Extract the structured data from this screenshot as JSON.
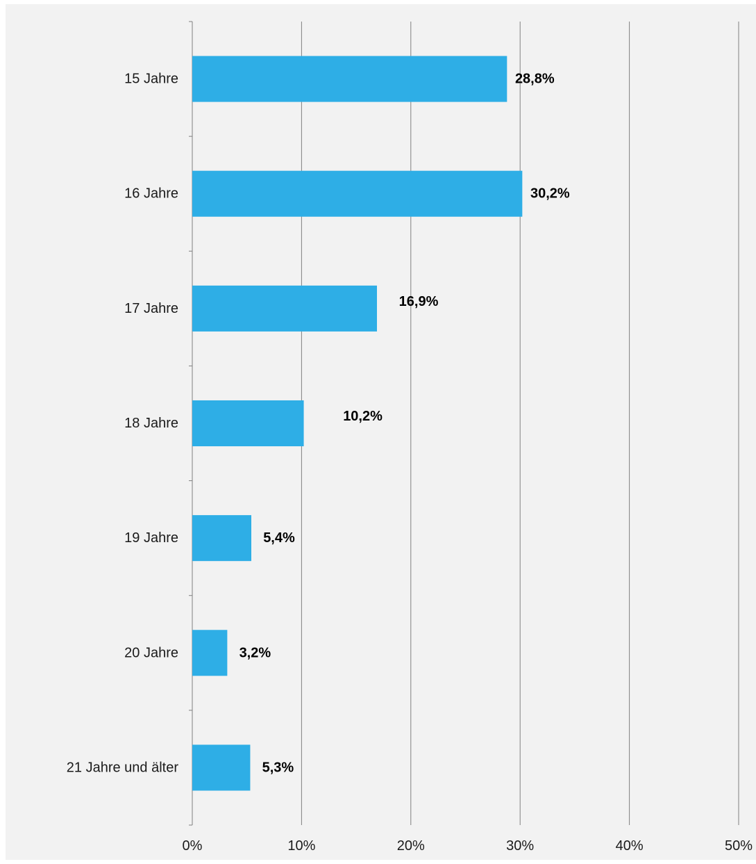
{
  "chart_data": {
    "type": "bar",
    "orientation": "horizontal",
    "categories": [
      "15 Jahre",
      "16 Jahre",
      "17 Jahre",
      "18 Jahre",
      "19 Jahre",
      "20 Jahre",
      "21 Jahre und älter"
    ],
    "values": [
      28.8,
      30.2,
      16.9,
      10.2,
      5.4,
      3.2,
      5.3
    ],
    "value_labels": [
      "28,8%",
      "30,2%",
      "16,9%",
      "10,2%",
      "5,4%",
      "3,2%",
      "5,3%"
    ],
    "x_ticks": [
      0,
      10,
      20,
      30,
      40,
      50
    ],
    "x_tick_labels": [
      "0%",
      "10%",
      "20%",
      "30%",
      "40%",
      "50%"
    ],
    "xlim": [
      0,
      50
    ],
    "title": "",
    "xlabel": "",
    "ylabel": "",
    "grid": "vertical",
    "legend": "none",
    "colors": {
      "bar": "#2eaee6",
      "background": "#f2f2f2",
      "gridline": "#808080",
      "axis": "#808080",
      "text": "#1a1a1a"
    }
  }
}
